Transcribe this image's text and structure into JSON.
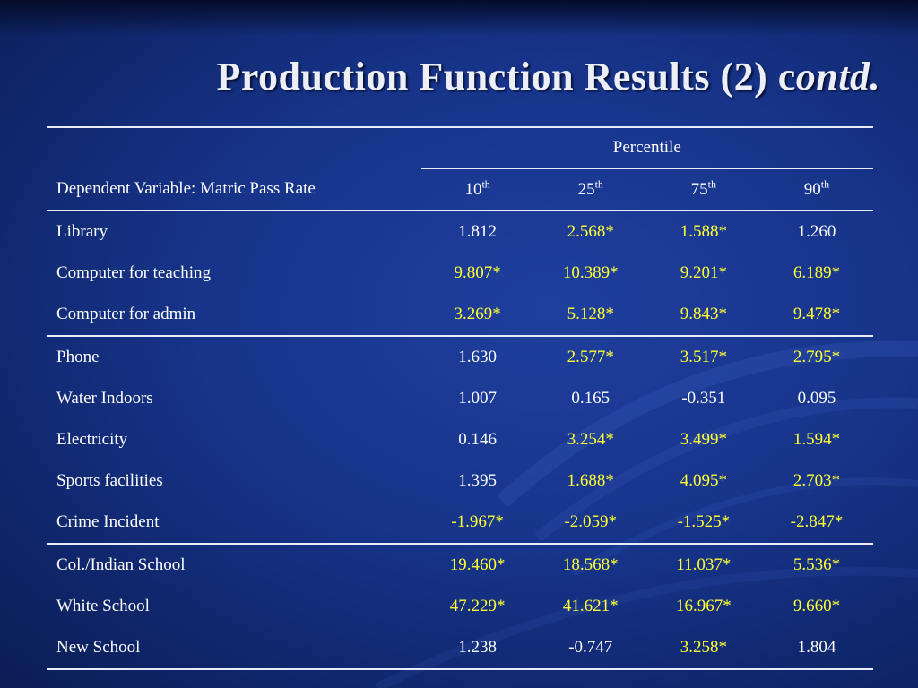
{
  "slide": {
    "title_main": "Production Function Results (2) c",
    "title_italic": "ontd.",
    "colors": {
      "significant": "#ffff33",
      "normal": "#ffffff",
      "background": "#1a3a94"
    }
  },
  "table": {
    "group_header": "Percentile",
    "dependent_variable_label": "Dependent Variable: Matric Pass Rate",
    "columns": [
      {
        "num": "10",
        "suffix": "th"
      },
      {
        "num": "25",
        "suffix": "th"
      },
      {
        "num": "75",
        "suffix": "th"
      },
      {
        "num": "90",
        "suffix": "th"
      }
    ],
    "rows": [
      {
        "label": "Library",
        "values": [
          {
            "text": "1.812",
            "significant": false
          },
          {
            "text": "2.568*",
            "significant": true
          },
          {
            "text": "1.588*",
            "significant": true
          },
          {
            "text": "1.260",
            "significant": false
          }
        ]
      },
      {
        "label": "Computer for teaching",
        "values": [
          {
            "text": "9.807*",
            "significant": true
          },
          {
            "text": "10.389*",
            "significant": true
          },
          {
            "text": "9.201*",
            "significant": true
          },
          {
            "text": "6.189*",
            "significant": true
          }
        ]
      },
      {
        "label": "Computer for admin",
        "values": [
          {
            "text": "3.269*",
            "significant": true
          },
          {
            "text": "5.128*",
            "significant": true
          },
          {
            "text": "9.843*",
            "significant": true
          },
          {
            "text": "9.478*",
            "significant": true
          }
        ]
      },
      {
        "label": "Phone",
        "values": [
          {
            "text": "1.630",
            "significant": false
          },
          {
            "text": "2.577*",
            "significant": true
          },
          {
            "text": "3.517*",
            "significant": true
          },
          {
            "text": "2.795*",
            "significant": true
          }
        ]
      },
      {
        "label": "Water Indoors",
        "values": [
          {
            "text": "1.007",
            "significant": false
          },
          {
            "text": "0.165",
            "significant": false
          },
          {
            "text": "-0.351",
            "significant": false
          },
          {
            "text": "0.095",
            "significant": false
          }
        ]
      },
      {
        "label": "Electricity",
        "values": [
          {
            "text": "0.146",
            "significant": false
          },
          {
            "text": "3.254*",
            "significant": true
          },
          {
            "text": "3.499*",
            "significant": true
          },
          {
            "text": "1.594*",
            "significant": true
          }
        ]
      },
      {
        "label": "Sports facilities",
        "values": [
          {
            "text": "1.395",
            "significant": false
          },
          {
            "text": "1.688*",
            "significant": true
          },
          {
            "text": "4.095*",
            "significant": true
          },
          {
            "text": "2.703*",
            "significant": true
          }
        ]
      },
      {
        "label": "Crime Incident",
        "values": [
          {
            "text": "-1.967*",
            "significant": true
          },
          {
            "text": "-2.059*",
            "significant": true
          },
          {
            "text": "-1.525*",
            "significant": true
          },
          {
            "text": "-2.847*",
            "significant": true
          }
        ]
      },
      {
        "label": "Col./Indian School",
        "values": [
          {
            "text": "19.460*",
            "significant": true
          },
          {
            "text": "18.568*",
            "significant": true
          },
          {
            "text": "11.037*",
            "significant": true
          },
          {
            "text": "5.536*",
            "significant": true
          }
        ]
      },
      {
        "label": "White School",
        "values": [
          {
            "text": "47.229*",
            "significant": true
          },
          {
            "text": "41.621*",
            "significant": true
          },
          {
            "text": "16.967*",
            "significant": true
          },
          {
            "text": "9.660*",
            "significant": true
          }
        ]
      },
      {
        "label": "New School",
        "values": [
          {
            "text": "1.238",
            "significant": false
          },
          {
            "text": "-0.747",
            "significant": false
          },
          {
            "text": "3.258*",
            "significant": true
          },
          {
            "text": "1.804",
            "significant": false
          }
        ]
      }
    ]
  }
}
